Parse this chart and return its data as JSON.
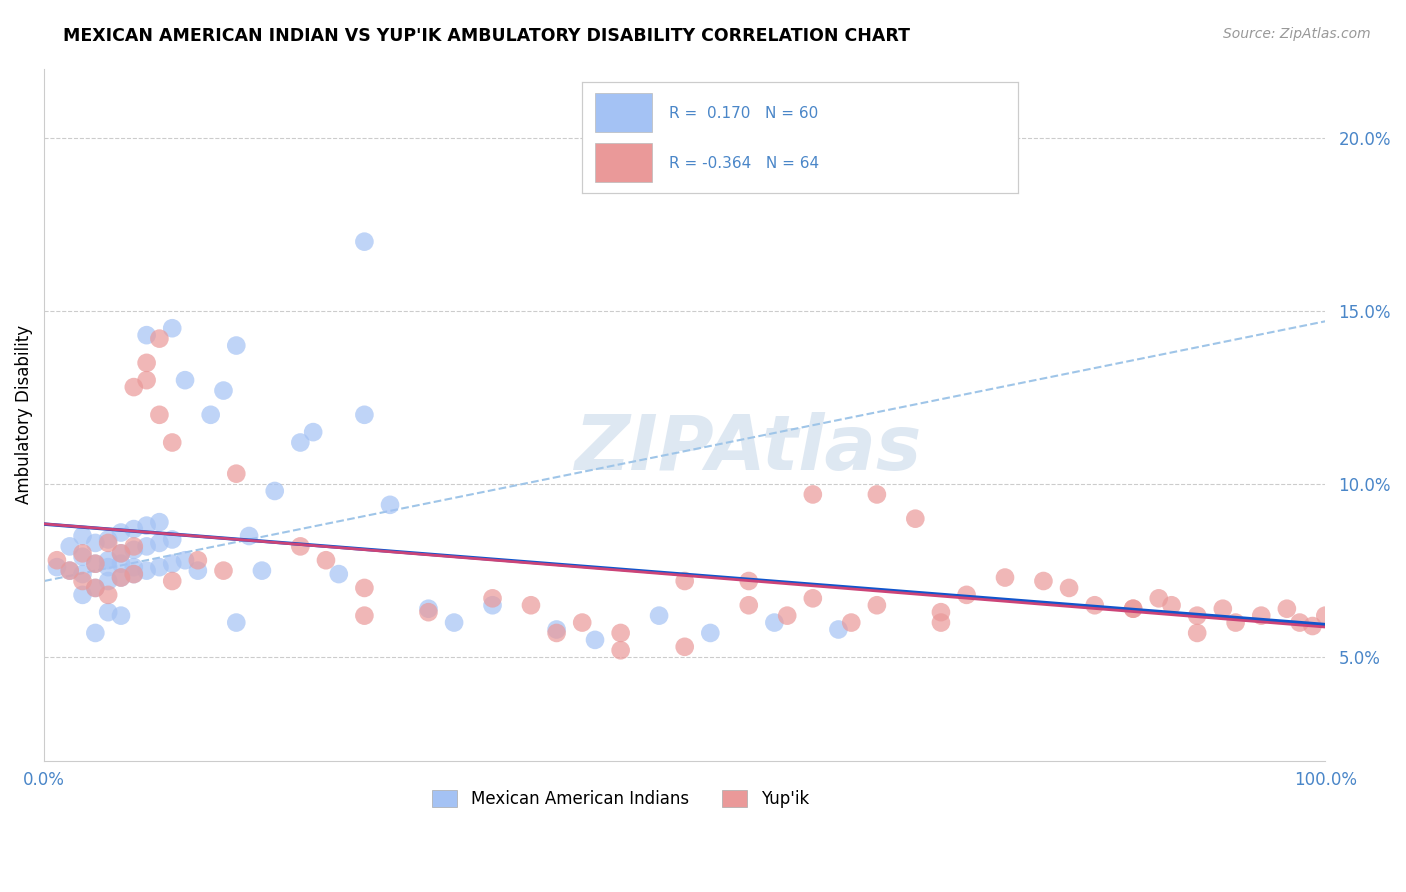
{
  "title": "MEXICAN AMERICAN INDIAN VS YUP'IK AMBULATORY DISABILITY CORRELATION CHART",
  "source_text": "Source: ZipAtlas.com",
  "ylabel": "Ambulatory Disability",
  "xlim": [
    0,
    1.0
  ],
  "ylim": [
    0.02,
    0.22
  ],
  "yticks": [
    0.05,
    0.1,
    0.15,
    0.2
  ],
  "ytick_labels": [
    "5.0%",
    "10.0%",
    "15.0%",
    "20.0%"
  ],
  "xticks": [
    0.0,
    0.25,
    0.5,
    0.75,
    1.0
  ],
  "xtick_labels": [
    "0.0%",
    "",
    "",
    "",
    "100.0%"
  ],
  "legend_label1": "Mexican American Indians",
  "legend_label2": "Yup'ik",
  "color_blue": "#a4c2f4",
  "color_pink": "#ea9999",
  "color_blue_line": "#1155cc",
  "color_pink_line": "#cc4477",
  "color_gray_line": "#9fc5e8",
  "color_text_blue": "#4a86c8",
  "blue_x": [
    0.01,
    0.02,
    0.02,
    0.03,
    0.03,
    0.03,
    0.04,
    0.04,
    0.04,
    0.05,
    0.05,
    0.05,
    0.05,
    0.06,
    0.06,
    0.06,
    0.06,
    0.07,
    0.07,
    0.07,
    0.07,
    0.08,
    0.08,
    0.08,
    0.09,
    0.09,
    0.09,
    0.1,
    0.1,
    0.11,
    0.11,
    0.12,
    0.13,
    0.14,
    0.15,
    0.16,
    0.17,
    0.18,
    0.2,
    0.21,
    0.23,
    0.25,
    0.27,
    0.3,
    0.32,
    0.35,
    0.4,
    0.43,
    0.48,
    0.52,
    0.57,
    0.62,
    0.15,
    0.1,
    0.08,
    0.06,
    0.05,
    0.04,
    0.03,
    0.25
  ],
  "blue_y": [
    0.076,
    0.075,
    0.082,
    0.074,
    0.079,
    0.085,
    0.07,
    0.077,
    0.083,
    0.072,
    0.078,
    0.084,
    0.076,
    0.073,
    0.08,
    0.086,
    0.077,
    0.074,
    0.081,
    0.087,
    0.076,
    0.075,
    0.082,
    0.088,
    0.076,
    0.083,
    0.089,
    0.077,
    0.084,
    0.078,
    0.13,
    0.075,
    0.12,
    0.127,
    0.14,
    0.085,
    0.075,
    0.098,
    0.112,
    0.115,
    0.074,
    0.12,
    0.094,
    0.064,
    0.06,
    0.065,
    0.058,
    0.055,
    0.062,
    0.057,
    0.06,
    0.058,
    0.06,
    0.145,
    0.143,
    0.062,
    0.063,
    0.057,
    0.068,
    0.17
  ],
  "pink_x": [
    0.01,
    0.02,
    0.03,
    0.03,
    0.04,
    0.04,
    0.05,
    0.05,
    0.06,
    0.06,
    0.07,
    0.07,
    0.07,
    0.08,
    0.08,
    0.09,
    0.09,
    0.1,
    0.1,
    0.12,
    0.14,
    0.15,
    0.2,
    0.22,
    0.25,
    0.3,
    0.35,
    0.38,
    0.42,
    0.45,
    0.5,
    0.55,
    0.58,
    0.6,
    0.63,
    0.65,
    0.68,
    0.7,
    0.72,
    0.75,
    0.78,
    0.8,
    0.82,
    0.85,
    0.87,
    0.88,
    0.9,
    0.92,
    0.93,
    0.95,
    0.97,
    0.98,
    0.99,
    1.0,
    0.85,
    0.9,
    0.6,
    0.4,
    0.25,
    0.5,
    0.7,
    0.45,
    0.65,
    0.55
  ],
  "pink_y": [
    0.078,
    0.075,
    0.072,
    0.08,
    0.07,
    0.077,
    0.068,
    0.083,
    0.073,
    0.08,
    0.074,
    0.082,
    0.128,
    0.13,
    0.135,
    0.12,
    0.142,
    0.072,
    0.112,
    0.078,
    0.075,
    0.103,
    0.082,
    0.078,
    0.07,
    0.063,
    0.067,
    0.065,
    0.06,
    0.057,
    0.053,
    0.065,
    0.062,
    0.097,
    0.06,
    0.097,
    0.09,
    0.063,
    0.068,
    0.073,
    0.072,
    0.07,
    0.065,
    0.064,
    0.067,
    0.065,
    0.062,
    0.064,
    0.06,
    0.062,
    0.064,
    0.06,
    0.059,
    0.062,
    0.064,
    0.057,
    0.067,
    0.057,
    0.062,
    0.072,
    0.06,
    0.052,
    0.065,
    0.072
  ]
}
